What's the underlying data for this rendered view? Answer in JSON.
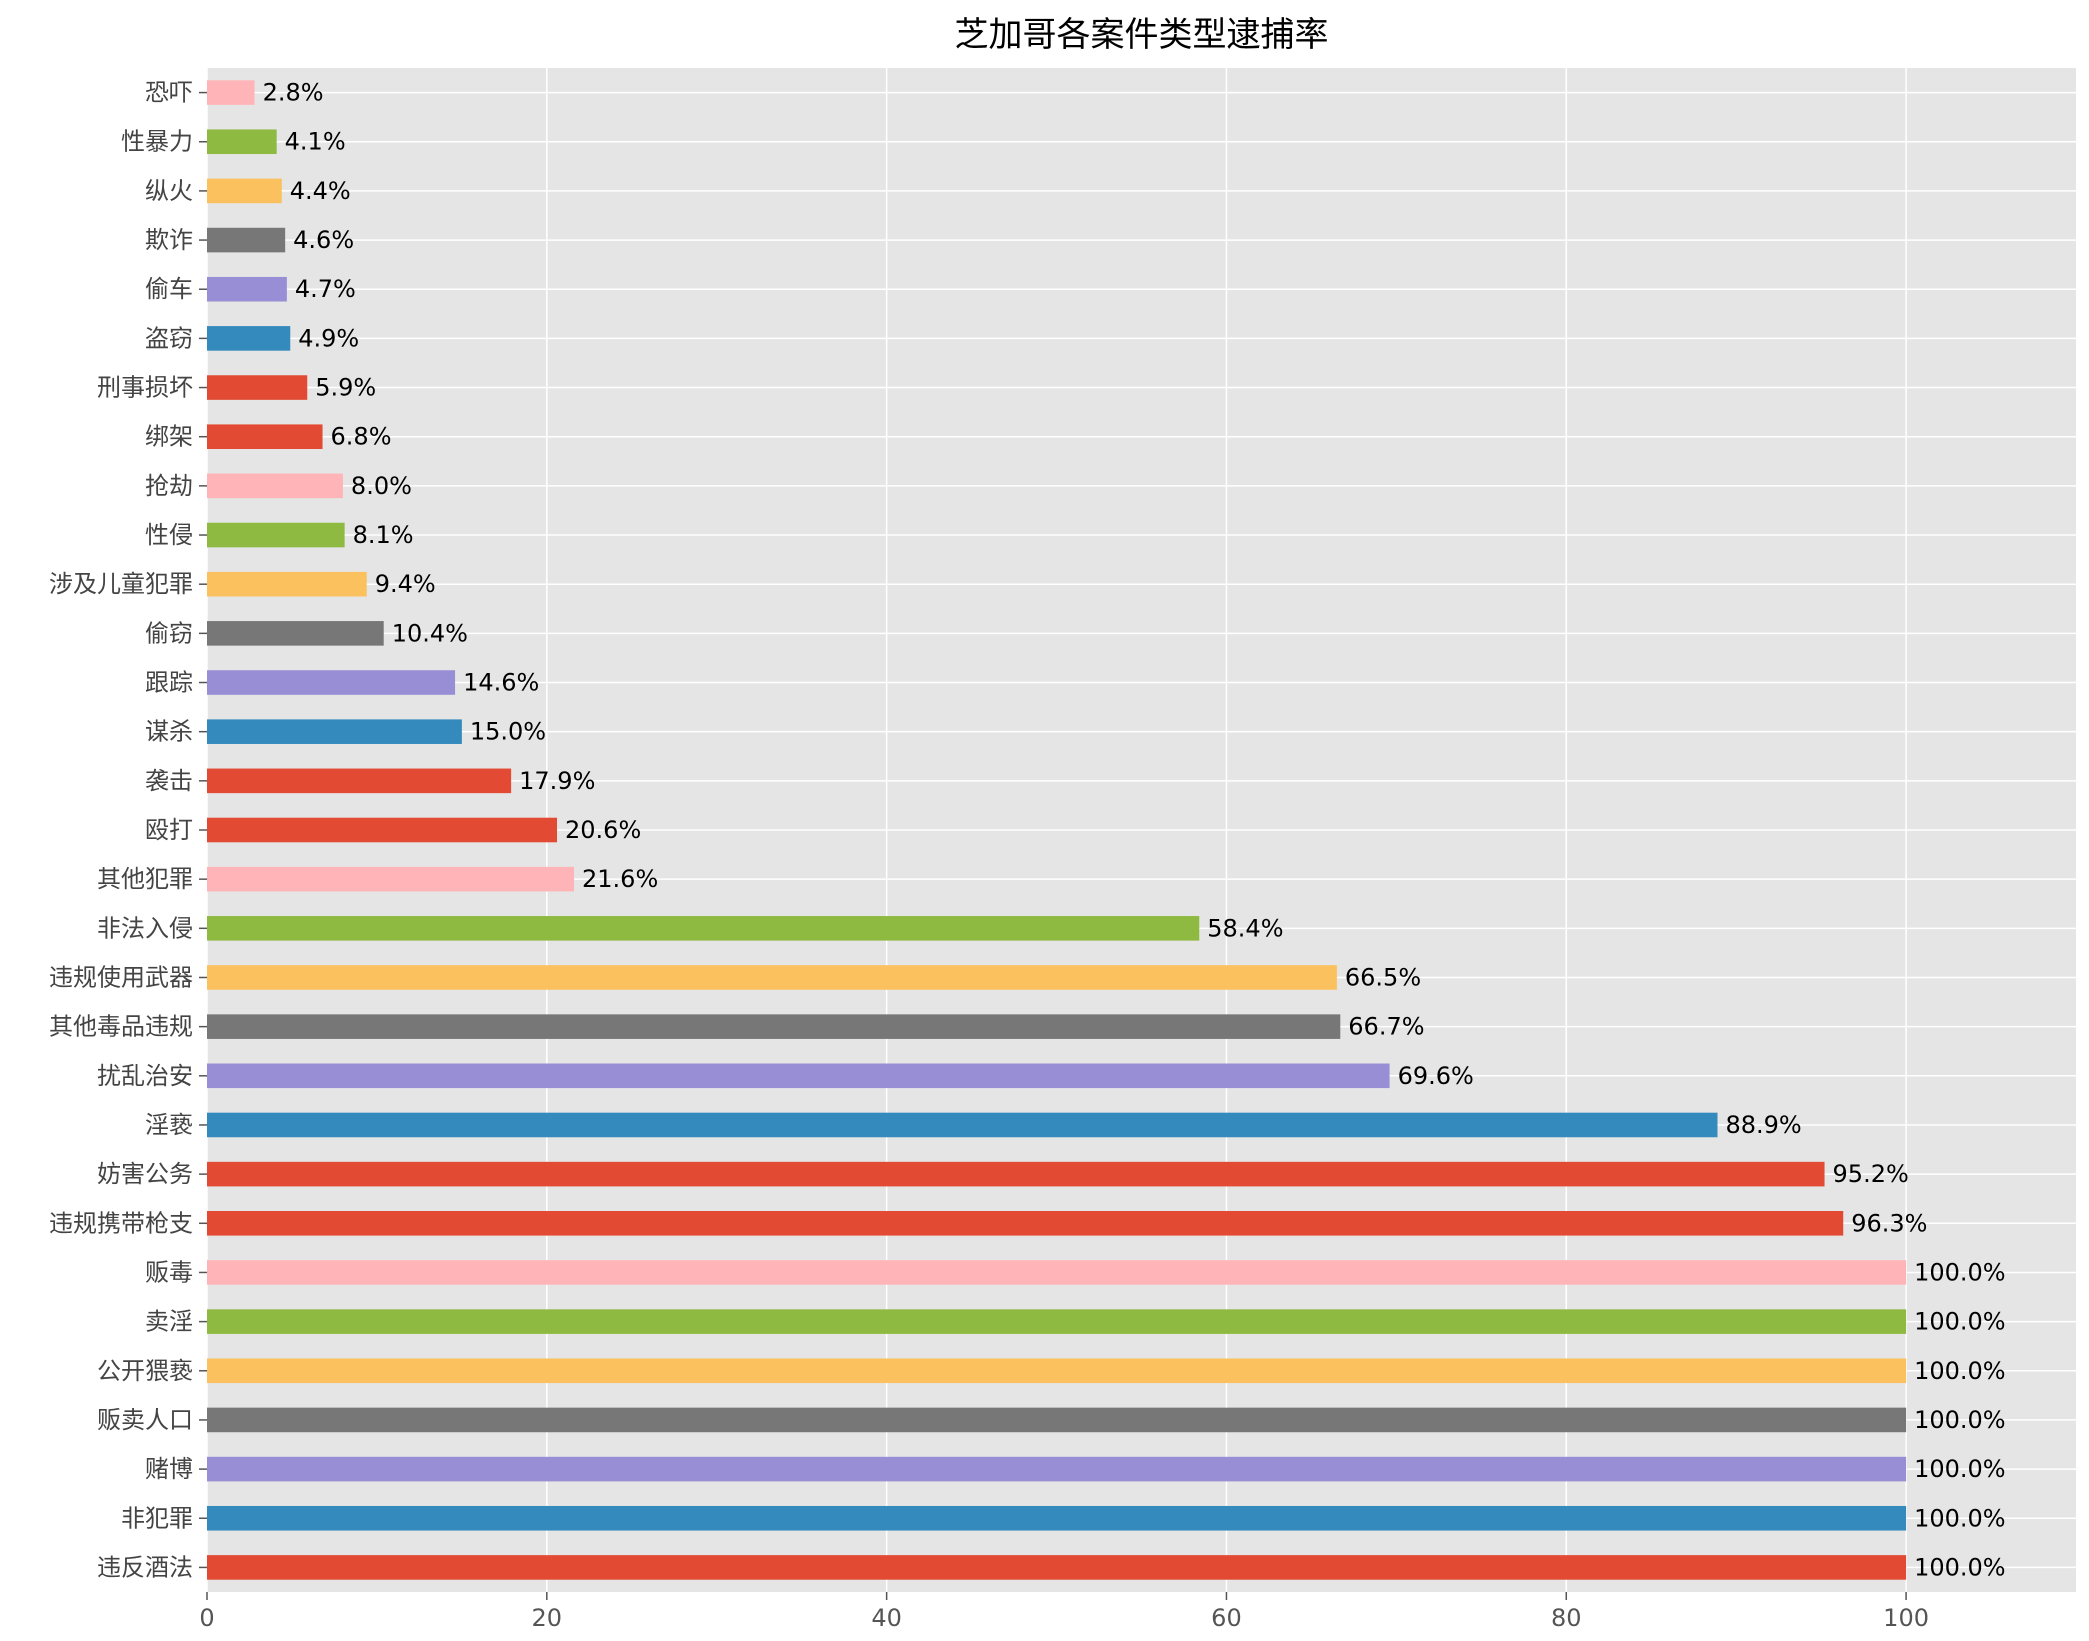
{
  "chart_data": {
    "type": "bar",
    "orientation": "horizontal",
    "title": "芝加哥各案件类型逮捕率",
    "xlabel": "",
    "ylabel": "",
    "xlim": [
      0,
      110
    ],
    "xticks": [
      0,
      20,
      40,
      60,
      80,
      100
    ],
    "grid": true,
    "value_suffix": "%",
    "categories": [
      "恐吓",
      "性暴力",
      "纵火",
      "欺诈",
      "偷车",
      "盗窃",
      "刑事损坏",
      "绑架",
      "抢劫",
      "性侵",
      "涉及儿童犯罪",
      "偷窃",
      "跟踪",
      "谋杀",
      "袭击",
      "殴打",
      "其他犯罪",
      "非法入侵",
      "违规使用武器",
      "其他毒品违规",
      "扰乱治安",
      "淫亵",
      "妨害公务",
      "违规携带枪支",
      "贩毒",
      "卖淫",
      "公开猥亵",
      "贩卖人口",
      "赌博",
      "非犯罪",
      "违反酒法"
    ],
    "values": [
      2.8,
      4.1,
      4.4,
      4.6,
      4.7,
      4.9,
      5.9,
      6.8,
      8.0,
      8.1,
      9.4,
      10.4,
      14.6,
      15.0,
      17.9,
      20.6,
      21.6,
      58.4,
      66.5,
      66.7,
      69.6,
      88.9,
      95.2,
      96.3,
      100.0,
      100.0,
      100.0,
      100.0,
      100.0,
      100.0,
      100.0
    ],
    "value_labels": [
      "2.8%",
      "4.1%",
      "4.4%",
      "4.6%",
      "4.7%",
      "4.9%",
      "5.9%",
      "6.8%",
      "8.0%",
      "8.1%",
      "9.4%",
      "10.4%",
      "14.6%",
      "15.0%",
      "17.9%",
      "20.6%",
      "21.6%",
      "58.4%",
      "66.5%",
      "66.7%",
      "69.6%",
      "88.9%",
      "95.2%",
      "96.3%",
      "100.0%",
      "100.0%",
      "100.0%",
      "100.0%",
      "100.0%",
      "100.0%",
      "100.0%"
    ],
    "colors": [
      "#ffb5b8",
      "#8eba42",
      "#fbc15e",
      "#777777",
      "#988ed5",
      "#348abd",
      "#e24a33",
      "#e24a33",
      "#ffb5b8",
      "#8eba42",
      "#fbc15e",
      "#777777",
      "#988ed5",
      "#348abd",
      "#e24a33",
      "#e24a33",
      "#ffb5b8",
      "#8eba42",
      "#fbc15e",
      "#777777",
      "#988ed5",
      "#348abd",
      "#e24a33",
      "#e24a33",
      "#ffb5b8",
      "#8eba42",
      "#fbc15e",
      "#777777",
      "#988ed5",
      "#348abd",
      "#e24a33"
    ],
    "background": "#e5e5e5",
    "grid_color": "#ffffff"
  }
}
